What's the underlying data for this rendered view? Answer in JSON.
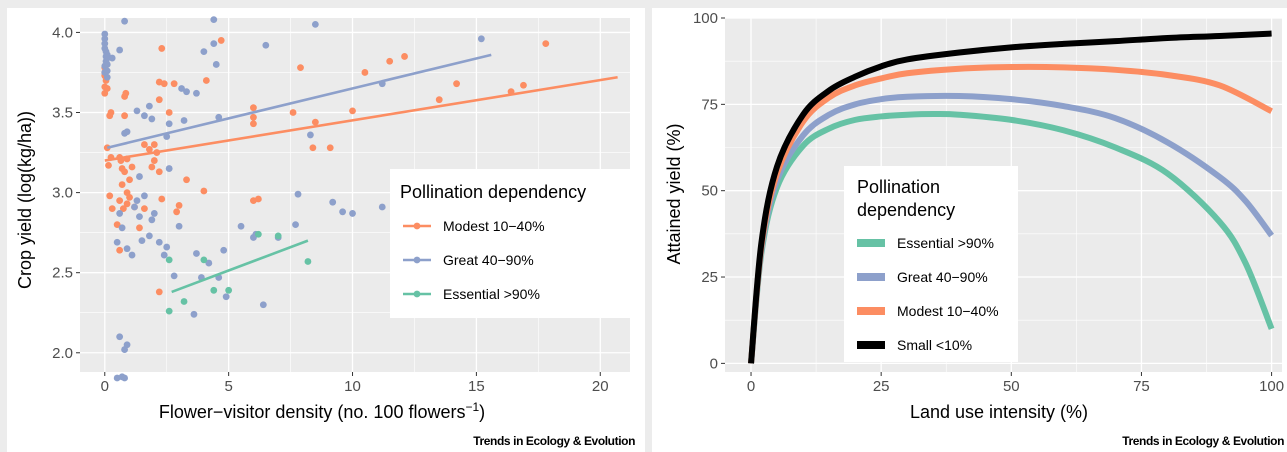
{
  "credit": "Trends in Ecology & Evolution",
  "colors": {
    "modest": "#fc8d62",
    "great": "#8da0cb",
    "essential": "#66c2a5",
    "small": "#000000",
    "panel_bg": "#ebebeb",
    "grid": "#ffffff"
  },
  "chart_data": [
    {
      "type": "scatter",
      "xlabel": "Flower−visitor density (no. 100 flowers",
      "xlabel_sup": "−1",
      "xlabel_close": ")",
      "ylabel": "Crop yield (log(kg/ha))",
      "xlim": [
        -1,
        21.2
      ],
      "ylim": [
        1.88,
        4.09
      ],
      "x_ticks": [
        0,
        5,
        10,
        15,
        20
      ],
      "x_tick_labels": [
        "0",
        "5",
        "10",
        "15",
        "20"
      ],
      "y_ticks": [
        2.0,
        2.5,
        3.0,
        3.5,
        4.0
      ],
      "y_tick_labels": [
        "2.0",
        "2.5",
        "3.0",
        "3.5",
        "4.0"
      ],
      "grid": true,
      "legend": {
        "title": "Pollination dependency",
        "position": "center-right",
        "entries": [
          {
            "label": "Modest 10−40%",
            "color": "#fc8d62"
          },
          {
            "label": "Great 40−90%",
            "color": "#8da0cb"
          },
          {
            "label": "Essential >90%",
            "color": "#66c2a5"
          }
        ]
      },
      "series": [
        {
          "name": "Modest 10−40%",
          "color": "#fc8d62",
          "trend": {
            "x": [
              0,
              20.7
            ],
            "y": [
              3.2,
              3.72
            ]
          },
          "points": [
            [
              0,
              3.78
            ],
            [
              0,
              3.75
            ],
            [
              0,
              3.73
            ],
            [
              0,
              3.66
            ],
            [
              0,
              3.62
            ],
            [
              0.05,
              3.7
            ],
            [
              0.1,
              3.65
            ],
            [
              0.2,
              3.48
            ],
            [
              0.25,
              3.5
            ],
            [
              0.1,
              3.28
            ],
            [
              0.15,
              3.17
            ],
            [
              0.25,
              3.22
            ],
            [
              0.2,
              2.98
            ],
            [
              0.3,
              2.9
            ],
            [
              0.6,
              3.22
            ],
            [
              0.65,
              3.2
            ],
            [
              0.7,
              3.15
            ],
            [
              0.8,
              3.13
            ],
            [
              0.9,
              3.21
            ],
            [
              0.7,
              3.05
            ],
            [
              0.9,
              3.0
            ],
            [
              1.0,
              3.08
            ],
            [
              1.1,
              3.16
            ],
            [
              0.6,
              2.95
            ],
            [
              0.5,
              2.8
            ],
            [
              0.6,
              2.64
            ],
            [
              0.75,
              2.9
            ],
            [
              0.9,
              2.93
            ],
            [
              1.0,
              2.97
            ],
            [
              1.2,
              2.91
            ],
            [
              1.4,
              2.78
            ],
            [
              1.6,
              2.9
            ],
            [
              0.8,
              3.6
            ],
            [
              0.85,
              3.62
            ],
            [
              0.8,
              3.48
            ],
            [
              1.6,
              3.3
            ],
            [
              1.8,
              3.27
            ],
            [
              2.0,
              3.2
            ],
            [
              2.1,
              3.25
            ],
            [
              2.0,
              3.3
            ],
            [
              2.2,
              3.13
            ],
            [
              1.9,
              3.16
            ],
            [
              2.3,
              2.96
            ],
            [
              2.2,
              3.58
            ],
            [
              2.2,
              3.69
            ],
            [
              2.4,
              3.68
            ],
            [
              2.3,
              3.9
            ],
            [
              2.6,
              3.5
            ],
            [
              2.8,
              3.68
            ],
            [
              2.9,
              2.88
            ],
            [
              3.0,
              2.92
            ],
            [
              3.3,
              3.08
            ],
            [
              4.0,
              3.01
            ],
            [
              4.1,
              3.7
            ],
            [
              4.7,
              3.95
            ],
            [
              2.2,
              2.38
            ],
            [
              6.0,
              3.53
            ],
            [
              6.0,
              3.47
            ],
            [
              6.0,
              3.43
            ],
            [
              6.2,
              2.96
            ],
            [
              6.0,
              2.95
            ],
            [
              7.6,
              3.5
            ],
            [
              7.9,
              3.78
            ],
            [
              8.5,
              3.44
            ],
            [
              8.4,
              3.28
            ],
            [
              9.1,
              3.28
            ],
            [
              10.0,
              3.51
            ],
            [
              10.5,
              3.75
            ],
            [
              11.5,
              3.82
            ],
            [
              12.1,
              3.85
            ],
            [
              13.5,
              3.58
            ],
            [
              14.2,
              3.68
            ],
            [
              16.4,
              3.63
            ],
            [
              16.9,
              3.67
            ],
            [
              17.8,
              3.93
            ]
          ]
        },
        {
          "name": "Great 40−90%",
          "color": "#8da0cb",
          "trend": {
            "x": [
              0.1,
              15.6
            ],
            "y": [
              3.28,
              3.86
            ]
          },
          "points": [
            [
              0,
              3.99
            ],
            [
              0,
              3.96
            ],
            [
              0,
              3.93
            ],
            [
              0,
              3.9
            ],
            [
              0.05,
              3.88
            ],
            [
              0.05,
              3.85
            ],
            [
              0.05,
              3.82
            ],
            [
              0,
              3.79
            ],
            [
              0,
              3.75
            ],
            [
              0.1,
              3.72
            ],
            [
              0.1,
              3.8
            ],
            [
              0.1,
              3.86
            ],
            [
              0.1,
              3.84
            ],
            [
              0.1,
              3.76
            ],
            [
              0.3,
              3.84
            ],
            [
              0.6,
              3.89
            ],
            [
              0.8,
              3.37
            ],
            [
              0.9,
              3.38
            ],
            [
              0.5,
              2.69
            ],
            [
              0.7,
              2.78
            ],
            [
              0.6,
              2.87
            ],
            [
              0.9,
              2.65
            ],
            [
              1.1,
              2.61
            ],
            [
              1.2,
              2.91
            ],
            [
              1.3,
              2.95
            ],
            [
              1.4,
              2.85
            ],
            [
              1.5,
              2.7
            ],
            [
              1.6,
              2.98
            ],
            [
              1.8,
              2.73
            ],
            [
              1.9,
              2.83
            ],
            [
              2.0,
              2.87
            ],
            [
              2.2,
              2.69
            ],
            [
              2.4,
              2.61
            ],
            [
              2.5,
              2.66
            ],
            [
              2.6,
              3.15
            ],
            [
              1.4,
              3.1
            ],
            [
              1.3,
              3.51
            ],
            [
              1.6,
              3.48
            ],
            [
              1.9,
              3.46
            ],
            [
              1.8,
              3.54
            ],
            [
              2.6,
              3.43
            ],
            [
              2.5,
              3.35
            ],
            [
              3.1,
              3.65
            ],
            [
              3.3,
              3.63
            ],
            [
              3.7,
              3.62
            ],
            [
              3.2,
              3.45
            ],
            [
              4.0,
              3.88
            ],
            [
              4.4,
              4.08
            ],
            [
              4.4,
              3.93
            ],
            [
              4.5,
              3.8
            ],
            [
              4.6,
              3.47
            ],
            [
              3.7,
              2.62
            ],
            [
              3.9,
              2.47
            ],
            [
              3.6,
              2.24
            ],
            [
              4.2,
              2.56
            ],
            [
              4.6,
              2.47
            ],
            [
              4.8,
              2.64
            ],
            [
              4.9,
              2.35
            ],
            [
              5.5,
              2.79
            ],
            [
              6.0,
              2.72
            ],
            [
              6.1,
              2.74
            ],
            [
              6.5,
              3.92
            ],
            [
              6.4,
              2.3
            ],
            [
              7.0,
              2.72
            ],
            [
              7.7,
              2.8
            ],
            [
              7.8,
              2.99
            ],
            [
              8.3,
              3.36
            ],
            [
              8.5,
              4.05
            ],
            [
              9.2,
              2.94
            ],
            [
              9.6,
              2.88
            ],
            [
              10.0,
              2.87
            ],
            [
              11.2,
              3.68
            ],
            [
              11.2,
              2.91
            ],
            [
              15.2,
              3.96
            ],
            [
              0.8,
              4.07
            ],
            [
              0.6,
              2.1
            ],
            [
              0.9,
              2.05
            ],
            [
              0.8,
              2.02
            ],
            [
              0.5,
              1.78
            ],
            [
              0.7,
              1.85
            ],
            [
              0.8,
              1.77
            ],
            [
              3.0,
              2.79
            ],
            [
              2.8,
              2.48
            ]
          ]
        },
        {
          "name": "Essential >90%",
          "color": "#66c2a5",
          "trend": {
            "x": [
              2.7,
              8.2
            ],
            "y": [
              2.38,
              2.7
            ]
          },
          "points": [
            [
              2.6,
              2.58
            ],
            [
              2.6,
              2.26
            ],
            [
              3.2,
              2.32
            ],
            [
              4.0,
              2.58
            ],
            [
              4.4,
              2.39
            ],
            [
              5.0,
              2.39
            ],
            [
              6.2,
              2.74
            ],
            [
              7.0,
              2.73
            ],
            [
              8.2,
              2.57
            ]
          ]
        }
      ]
    },
    {
      "type": "line",
      "xlabel": "Land use intensity (%)",
      "ylabel": "Attained yield (%)",
      "xlim": [
        -5,
        102
      ],
      "ylim": [
        -2.5,
        100
      ],
      "x_ticks": [
        0,
        25,
        50,
        75,
        100
      ],
      "x_tick_labels": [
        "0",
        "25",
        "50",
        "75",
        "100"
      ],
      "y_ticks": [
        0,
        25,
        50,
        75,
        100
      ],
      "y_tick_labels": [
        "0",
        "25",
        "50",
        "75",
        "100"
      ],
      "grid": true,
      "legend": {
        "title_lines": [
          "Pollination",
          "dependency"
        ],
        "position": "center-left",
        "entries": [
          {
            "label": "Essential >90%",
            "color": "#66c2a5"
          },
          {
            "label": "Great 40−90%",
            "color": "#8da0cb"
          },
          {
            "label": "Modest 10−40%",
            "color": "#fc8d62"
          },
          {
            "label": "Small <10%",
            "color": "#000000"
          }
        ]
      },
      "series": [
        {
          "name": "Small <10%",
          "color": "#000000",
          "x": [
            0,
            2,
            5,
            10,
            15,
            20,
            25,
            30,
            40,
            50,
            60,
            70,
            80,
            90,
            100
          ],
          "y": [
            0,
            35,
            57,
            72,
            79,
            83,
            86,
            88,
            90,
            91.5,
            92.5,
            93.3,
            94.2,
            94.8,
            95.5
          ]
        },
        {
          "name": "Modest 10−40%",
          "color": "#fc8d62",
          "x": [
            0,
            2,
            5,
            10,
            15,
            20,
            25,
            30,
            40,
            50,
            60,
            70,
            80,
            90,
            100
          ],
          "y": [
            0,
            34,
            55,
            70,
            77,
            80.5,
            82.5,
            84,
            85.3,
            85.8,
            85.7,
            85,
            83.5,
            80.5,
            73
          ]
        },
        {
          "name": "Great 40−90%",
          "color": "#8da0cb",
          "x": [
            0,
            2,
            5,
            10,
            15,
            20,
            25,
            30,
            40,
            50,
            60,
            70,
            80,
            90,
            95,
            100
          ],
          "y": [
            0,
            33,
            53,
            66,
            72,
            75,
            76.5,
            77.2,
            77.4,
            76.5,
            74.5,
            71,
            64,
            54,
            47,
            37
          ]
        },
        {
          "name": "Essential >90%",
          "color": "#66c2a5",
          "x": [
            0,
            2,
            5,
            10,
            15,
            20,
            25,
            30,
            35,
            40,
            50,
            60,
            70,
            80,
            90,
            95,
            100
          ],
          "y": [
            0,
            32,
            51,
            63,
            68,
            70.5,
            71.5,
            72,
            72.2,
            72,
            70.5,
            67.5,
            62.5,
            55,
            41,
            29,
            10
          ]
        }
      ]
    }
  ]
}
